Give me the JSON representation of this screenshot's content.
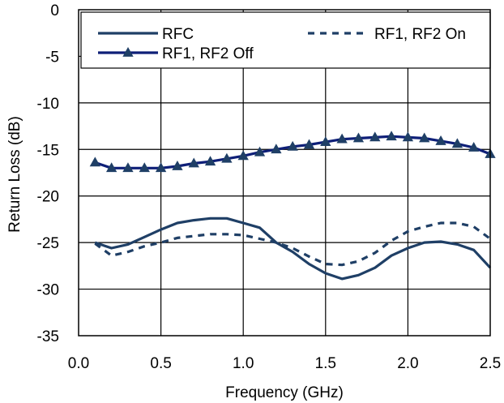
{
  "chart_data": {
    "type": "line",
    "xlabel": "Frequency (GHz)",
    "ylabel": "Return Loss (dB)",
    "xlim": [
      0.0,
      2.5
    ],
    "ylim": [
      -35,
      0
    ],
    "xticks": [
      "0.0",
      "0.5",
      "1.0",
      "1.5",
      "2.0",
      "2.5"
    ],
    "yticks": [
      "0",
      "-5",
      "-10",
      "-15",
      "-20",
      "-25",
      "-30",
      "-35"
    ],
    "grid": true,
    "legend_position": "top",
    "series": [
      {
        "name": "RFC",
        "style": "solid",
        "marker": "none",
        "color": "#1f3f66",
        "x": [
          0.1,
          0.2,
          0.3,
          0.4,
          0.5,
          0.6,
          0.7,
          0.8,
          0.9,
          1.0,
          1.1,
          1.2,
          1.3,
          1.4,
          1.5,
          1.6,
          1.7,
          1.8,
          1.9,
          2.0,
          2.1,
          2.2,
          2.3,
          2.4,
          2.5
        ],
        "y": [
          -25.0,
          -25.6,
          -25.2,
          -24.4,
          -23.6,
          -22.9,
          -22.6,
          -22.4,
          -22.4,
          -22.9,
          -23.4,
          -25.0,
          -26.0,
          -27.3,
          -28.3,
          -28.9,
          -28.5,
          -27.7,
          -26.4,
          -25.6,
          -25.0,
          -24.9,
          -25.2,
          -25.8,
          -27.7
        ]
      },
      {
        "name": "RF1, RF2 On",
        "style": "dashed",
        "marker": "none",
        "color": "#1f3f66",
        "x": [
          0.1,
          0.2,
          0.3,
          0.4,
          0.5,
          0.6,
          0.7,
          0.8,
          0.9,
          1.0,
          1.1,
          1.2,
          1.3,
          1.4,
          1.5,
          1.6,
          1.7,
          1.8,
          1.9,
          2.0,
          2.1,
          2.2,
          2.3,
          2.4,
          2.5
        ],
        "y": [
          -25.1,
          -26.4,
          -26.0,
          -25.4,
          -25.0,
          -24.5,
          -24.3,
          -24.1,
          -24.1,
          -24.2,
          -24.6,
          -25.0,
          -25.6,
          -26.5,
          -27.3,
          -27.4,
          -27.0,
          -26.1,
          -24.8,
          -23.8,
          -23.3,
          -22.9,
          -22.9,
          -23.3,
          -24.6
        ]
      },
      {
        "name": "RF1, RF2 Off",
        "style": "solid",
        "marker": "triangle",
        "color": "#0e1f78",
        "x": [
          0.1,
          0.2,
          0.3,
          0.4,
          0.5,
          0.6,
          0.7,
          0.8,
          0.9,
          1.0,
          1.1,
          1.2,
          1.3,
          1.4,
          1.5,
          1.6,
          1.7,
          1.8,
          1.9,
          2.0,
          2.1,
          2.2,
          2.3,
          2.4,
          2.5
        ],
        "y": [
          -16.4,
          -17.0,
          -17.0,
          -17.0,
          -17.0,
          -16.8,
          -16.5,
          -16.3,
          -16.0,
          -15.7,
          -15.3,
          -15.0,
          -14.7,
          -14.5,
          -14.2,
          -13.9,
          -13.8,
          -13.7,
          -13.6,
          -13.7,
          -13.8,
          -14.1,
          -14.4,
          -14.8,
          -15.5
        ]
      }
    ]
  }
}
